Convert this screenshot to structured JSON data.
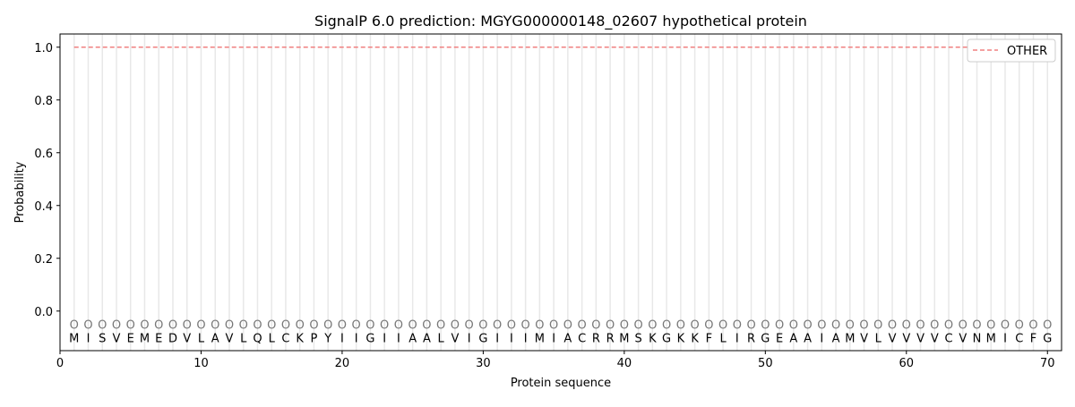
{
  "chart_data": {
    "type": "line",
    "title": "SignalP 6.0 prediction: MGYG000000148_02607 hypothetical protein",
    "xlabel": "Protein sequence",
    "ylabel": "Probability",
    "xlim": [
      0,
      71
    ],
    "ylim": [
      -0.15,
      1.05
    ],
    "xticks": [
      0,
      10,
      20,
      30,
      40,
      50,
      60,
      70
    ],
    "yticks": [
      0.0,
      0.2,
      0.4,
      0.6,
      0.8,
      1.0
    ],
    "ytick_labels": [
      "0.0",
      "0.2",
      "0.4",
      "0.6",
      "0.8",
      "1.0"
    ],
    "sequence": [
      "M",
      "I",
      "S",
      "V",
      "E",
      "M",
      "E",
      "D",
      "V",
      "L",
      "A",
      "V",
      "L",
      "Q",
      "L",
      "C",
      "K",
      "P",
      "Y",
      "I",
      "I",
      "G",
      "I",
      "I",
      "A",
      "A",
      "L",
      "V",
      "I",
      "G",
      "I",
      "I",
      "I",
      "M",
      "I",
      "A",
      "C",
      "R",
      "R",
      "M",
      "S",
      "K",
      "G",
      "K",
      "K",
      "F",
      "L",
      "I",
      "R",
      "G",
      "E",
      "A",
      "A",
      "I",
      "A",
      "M",
      "V",
      "L",
      "V",
      "V",
      "V",
      "V",
      "C",
      "V",
      "N",
      "M",
      "I",
      "C",
      "F",
      "G"
    ],
    "region_label": "O",
    "series": [
      {
        "name": "OTHER",
        "color": "#f08080",
        "style": "dashed",
        "x_range": [
          1,
          70
        ],
        "value": 1.0
      }
    ],
    "legend_placement": "top-right",
    "grid": "vertical lines at each residue"
  }
}
